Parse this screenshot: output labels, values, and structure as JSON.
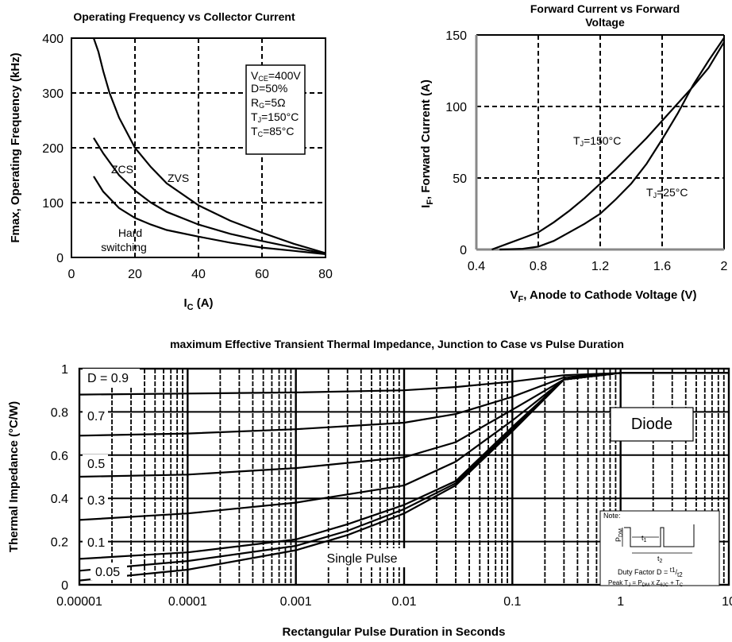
{
  "chart_data": [
    {
      "type": "line",
      "title": "Operating Frequency vs Collector Current",
      "xlabel_main": "I",
      "xlabel_sub": "C",
      "xlabel_tail": " (A)",
      "ylabel": "Fmax, Operating Frequency (kHz)",
      "xlim": [
        0,
        80
      ],
      "ylim": [
        0,
        400
      ],
      "xticks": [
        "0",
        "20",
        "40",
        "60",
        "80"
      ],
      "yticks": [
        "0",
        "100",
        "200",
        "300",
        "400"
      ],
      "grid": true,
      "series": [
        {
          "name": "ZVS",
          "x": [
            7,
            8.5,
            10,
            12,
            15,
            20,
            25,
            30,
            40,
            50,
            60,
            70,
            80
          ],
          "y": [
            400,
            375,
            340,
            300,
            255,
            200,
            165,
            135,
            95,
            67,
            45,
            25,
            8
          ]
        },
        {
          "name": "ZCS",
          "x": [
            7,
            10,
            15,
            20,
            25,
            30,
            40,
            50,
            60,
            70,
            80
          ],
          "y": [
            218,
            190,
            150,
            122,
            100,
            83,
            60,
            43,
            30,
            18,
            7
          ]
        },
        {
          "name": "Hard switching",
          "x": [
            7,
            10,
            15,
            20,
            25,
            30,
            40,
            50,
            60,
            70,
            80
          ],
          "y": [
            148,
            120,
            90,
            72,
            60,
            50,
            38,
            27,
            18,
            12,
            6
          ]
        }
      ],
      "legend_box": [
        "V_CE=400V",
        "D=50%",
        "R_G=5Ω",
        "T_J=150°C",
        "T_C=85°C"
      ],
      "curve_labels": [
        "ZVS",
        "ZCS",
        "Hard",
        "switching"
      ]
    },
    {
      "type": "line",
      "title_line1": "Forward Current vs Forward",
      "title_line2": "Voltage",
      "ylabel_main": "I",
      "ylabel_sub": "F",
      "ylabel_tail": ", Forward Current (A)",
      "xlabel_main": "V",
      "xlabel_sub": "F",
      "xlabel_tail": ", Anode to Cathode Voltage (V)",
      "xlim": [
        0.4,
        2.0
      ],
      "ylim": [
        0,
        150
      ],
      "xticks": [
        "0.4",
        "0.8",
        "1.2",
        "1.6",
        "2"
      ],
      "yticks": [
        "0",
        "50",
        "100",
        "150"
      ],
      "grid": true,
      "series": [
        {
          "name": "T_J=150°C",
          "x": [
            0.5,
            0.6,
            0.7,
            0.8,
            0.9,
            1.0,
            1.1,
            1.2,
            1.3,
            1.4,
            1.5,
            1.6,
            1.7,
            1.8,
            1.9,
            2.0
          ],
          "y": [
            0,
            4,
            8,
            12,
            19,
            27,
            36,
            46,
            56,
            67,
            78,
            90,
            102,
            114,
            127,
            145
          ]
        },
        {
          "name": "T_J=25°C",
          "x": [
            0.55,
            0.7,
            0.8,
            0.9,
            1.0,
            1.1,
            1.2,
            1.3,
            1.4,
            1.5,
            1.6,
            1.7,
            1.8,
            1.9,
            2.0
          ],
          "y": [
            0,
            0.5,
            2,
            6,
            12,
            18,
            25,
            35,
            46,
            60,
            77,
            95,
            115,
            132,
            148
          ]
        }
      ],
      "curve_labels": [
        "T_J=150°C",
        "T_J=25°C"
      ]
    },
    {
      "type": "line",
      "title": "maximum Effective Transient Thermal Impedance, Junction to Case vs Pulse Duration",
      "xlabel": "Rectangular Pulse Duration in Seconds",
      "ylabel": "Thermal Impedance (°C/W)",
      "xscale": "log",
      "xlim": [
        1e-05,
        10
      ],
      "ylim": [
        0,
        1
      ],
      "xticks": [
        "0.00001",
        "0.0001",
        "0.001",
        "0.01",
        "0.1",
        "1",
        "10"
      ],
      "yticks": [
        "0",
        "0.2",
        "0.4",
        "0.6",
        "0.8",
        "1"
      ],
      "grid": true,
      "series": [
        {
          "name": "D = 0.9",
          "x": [
            1e-05,
            0.0001,
            0.001,
            0.01,
            0.03,
            0.1,
            0.3,
            1,
            10
          ],
          "y": [
            0.88,
            0.885,
            0.89,
            0.9,
            0.915,
            0.94,
            0.97,
            0.98,
            0.98
          ]
        },
        {
          "name": "0.7",
          "x": [
            1e-05,
            0.0001,
            0.001,
            0.01,
            0.03,
            0.1,
            0.3,
            1,
            10
          ],
          "y": [
            0.69,
            0.7,
            0.72,
            0.75,
            0.79,
            0.87,
            0.96,
            0.98,
            0.98
          ]
        },
        {
          "name": "0.5",
          "x": [
            1e-05,
            0.0001,
            0.001,
            0.01,
            0.03,
            0.1,
            0.3,
            1,
            10
          ],
          "y": [
            0.5,
            0.51,
            0.54,
            0.59,
            0.66,
            0.81,
            0.95,
            0.98,
            0.98
          ]
        },
        {
          "name": "0.3",
          "x": [
            1e-05,
            0.0001,
            0.001,
            0.01,
            0.03,
            0.1,
            0.3,
            1,
            10
          ],
          "y": [
            0.3,
            0.33,
            0.38,
            0.46,
            0.57,
            0.76,
            0.95,
            0.98,
            0.98
          ]
        },
        {
          "name": "0.1",
          "x": [
            1e-05,
            0.0001,
            0.001,
            0.003,
            0.01,
            0.03,
            0.1,
            0.3,
            1,
            10
          ],
          "y": [
            0.12,
            0.15,
            0.21,
            0.28,
            0.37,
            0.48,
            0.73,
            0.95,
            0.98,
            0.98
          ]
        },
        {
          "name": "0.05",
          "x": [
            1e-05,
            0.0001,
            0.001,
            0.003,
            0.01,
            0.03,
            0.1,
            0.3,
            1,
            10
          ],
          "y": [
            0.065,
            0.11,
            0.18,
            0.25,
            0.35,
            0.47,
            0.72,
            0.95,
            0.98,
            0.98
          ]
        },
        {
          "name": "Single Pulse",
          "x": [
            1e-05,
            0.0001,
            0.001,
            0.003,
            0.01,
            0.03,
            0.1,
            0.3,
            1,
            10
          ],
          "y": [
            0.02,
            0.07,
            0.16,
            0.23,
            0.33,
            0.46,
            0.71,
            0.95,
            0.98,
            0.98
          ]
        }
      ],
      "curve_labels": [
        "D = 0.9",
        "0.7",
        "0.5",
        "0.3",
        "0.1",
        "0.05",
        "Single Pulse"
      ],
      "legend_box": "Diode",
      "note": {
        "title": "Note:",
        "pdm": "P",
        "pdm_sub": "DM",
        "t1": "t",
        "t1_sub": "1",
        "t2": "t",
        "t2_sub": "2",
        "duty": "Duty Factor  D = ",
        "duty_frac_top": "t1",
        "duty_frac_bot": "t2",
        "peak": "Peak T",
        "peak_sub": "J",
        "peak_mid": " = P",
        "peak_sub2": "DM",
        "peak_mid2": " x Z",
        "peak_sub3": "θJC",
        "peak_tail": " + T",
        "peak_sub4": "C"
      }
    }
  ]
}
